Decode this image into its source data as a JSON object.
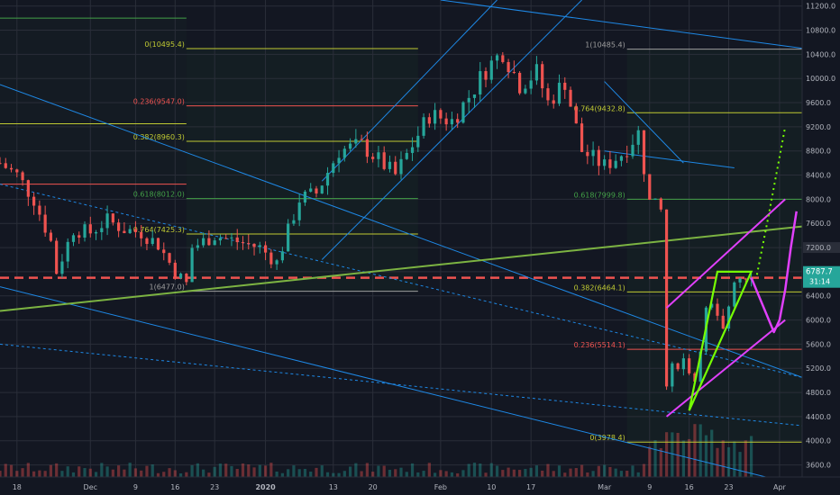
{
  "chart_data": {
    "type": "candlestick",
    "instrument": "BTCUSD",
    "timeframe": "daily",
    "y_axis": {
      "position": "right",
      "range": [
        3400,
        11300
      ],
      "ticks": [
        3600,
        4000,
        4400,
        4800,
        5200,
        5600,
        6000,
        6400,
        6800,
        7200,
        7600,
        8000,
        8400,
        8800,
        9200,
        9600,
        10000,
        10400,
        10800,
        11200
      ],
      "tick_labels": [
        "3600.0",
        "4000.0",
        "4400.0",
        "4800.0",
        "5200.0",
        "5600.0",
        "6000.0",
        "6400.0",
        "6800.0",
        "7200.0",
        "7600.0",
        "8000.0",
        "8400.0",
        "8800.0",
        "9200.0",
        "9600.0",
        "10000.0",
        "10400.0",
        "10800.0",
        "11200.0"
      ]
    },
    "x_axis": {
      "range": [
        "2019-11-15",
        "2020-04-05"
      ],
      "tick_dates": [
        "2019-11-18",
        "2019-12-01",
        "2019-12-09",
        "2019-12-16",
        "2019-12-23",
        "2020-01-01",
        "2020-01-13",
        "2020-01-20",
        "2020-02-01",
        "2020-02-10",
        "2020-02-17",
        "2020-03-01",
        "2020-03-09",
        "2020-03-16",
        "2020-03-23",
        "2020-04-01"
      ],
      "tick_labels": [
        "18",
        "Dec",
        "9",
        "16",
        "23",
        "2020",
        "13",
        "20",
        "Feb",
        "10",
        "17",
        "Mar",
        "9",
        "16",
        "23",
        "Apr"
      ]
    },
    "price_labels": {
      "current": {
        "value": 6787.7,
        "label": "6787.7",
        "countdown": "31:14",
        "color": "#26a69a"
      },
      "marker": {
        "value": 7200,
        "label": "7200.0",
        "color": "#2a2e39"
      }
    },
    "closes": [
      {
        "date": "2019-11-15",
        "close": 8600
      },
      {
        "date": "2019-11-18",
        "close": 8400
      },
      {
        "date": "2019-11-21",
        "close": 8000
      },
      {
        "date": "2019-11-24",
        "close": 7300
      },
      {
        "date": "2019-11-25",
        "close": 6800
      },
      {
        "date": "2019-11-28",
        "close": 7500
      },
      {
        "date": "2019-12-01",
        "close": 7450
      },
      {
        "date": "2019-12-04",
        "close": 7650
      },
      {
        "date": "2019-12-07",
        "close": 7500
      },
      {
        "date": "2019-12-10",
        "close": 7450
      },
      {
        "date": "2019-12-13",
        "close": 7250
      },
      {
        "date": "2019-12-16",
        "close": 6800
      },
      {
        "date": "2019-12-18",
        "close": 6600
      },
      {
        "date": "2019-12-19",
        "close": 7200
      },
      {
        "date": "2019-12-23",
        "close": 7400
      },
      {
        "date": "2019-12-27",
        "close": 7300
      },
      {
        "date": "2019-12-31",
        "close": 7200
      },
      {
        "date": "2020-01-03",
        "close": 6950
      },
      {
        "date": "2020-01-07",
        "close": 8000
      },
      {
        "date": "2020-01-10",
        "close": 8100
      },
      {
        "date": "2020-01-14",
        "close": 8800
      },
      {
        "date": "2020-01-18",
        "close": 8900
      },
      {
        "date": "2020-01-21",
        "close": 8650
      },
      {
        "date": "2020-01-24",
        "close": 8400
      },
      {
        "date": "2020-01-27",
        "close": 8900
      },
      {
        "date": "2020-01-30",
        "close": 9400
      },
      {
        "date": "2020-02-03",
        "close": 9300
      },
      {
        "date": "2020-02-06",
        "close": 9700
      },
      {
        "date": "2020-02-09",
        "close": 10150
      },
      {
        "date": "2020-02-12",
        "close": 10450
      },
      {
        "date": "2020-02-15",
        "close": 9900
      },
      {
        "date": "2020-02-18",
        "close": 10100
      },
      {
        "date": "2020-02-20",
        "close": 9600
      },
      {
        "date": "2020-02-23",
        "close": 9950
      },
      {
        "date": "2020-02-26",
        "close": 8800
      },
      {
        "date": "2020-03-01",
        "close": 8550
      },
      {
        "date": "2020-03-04",
        "close": 8750
      },
      {
        "date": "2020-03-07",
        "close": 9100
      },
      {
        "date": "2020-03-09",
        "close": 7950
      },
      {
        "date": "2020-03-11",
        "close": 7800
      },
      {
        "date": "2020-03-12",
        "close": 4900
      },
      {
        "date": "2020-03-13",
        "close": 5200
      },
      {
        "date": "2020-03-15",
        "close": 5350
      },
      {
        "date": "2020-03-17",
        "close": 5000
      },
      {
        "date": "2020-03-19",
        "close": 6150
      },
      {
        "date": "2020-03-20",
        "close": 6200
      },
      {
        "date": "2020-03-22",
        "close": 5800
      },
      {
        "date": "2020-03-24",
        "close": 6700
      },
      {
        "date": "2020-03-26",
        "close": 6750
      },
      {
        "date": "2020-03-27",
        "close": 6787.7
      }
    ],
    "fib_levels": [
      {
        "label": "0(10495.4)",
        "price": 10495.4,
        "from": "2019-12-18",
        "to": "2020-01-28",
        "color": "#c0ca33"
      },
      {
        "label": "0.236(9547.0)",
        "price": 9547.0,
        "from": "2019-12-18",
        "to": "2020-01-28",
        "color": "#ef5350"
      },
      {
        "label": "0.382(8960.3)",
        "price": 8960.3,
        "from": "2019-12-18",
        "to": "2020-01-28",
        "color": "#c0ca33"
      },
      {
        "label": "0.618(8012.0)",
        "price": 8012.0,
        "from": "2019-12-18",
        "to": "2020-01-28",
        "color": "#43a047"
      },
      {
        "label": "0.764(7425.3)",
        "price": 7425.3,
        "from": "2019-12-18",
        "to": "2020-01-28",
        "color": "#c0ca33"
      },
      {
        "label": "1(6477.0)",
        "price": 6477.0,
        "from": "2019-12-18",
        "to": "2020-01-28",
        "color": "#9e9e9e"
      },
      {
        "label": "1(10485.4)",
        "price": 10485.4,
        "from": "2020-03-05",
        "to": "2020-04-05",
        "color": "#9e9e9e"
      },
      {
        "label": "0.764(9432.8)",
        "price": 9432.8,
        "from": "2020-03-05",
        "to": "2020-04-05",
        "color": "#c0ca33"
      },
      {
        "label": "0.618(7999.8)",
        "price": 7999.8,
        "from": "2020-03-05",
        "to": "2020-04-05",
        "color": "#43a047"
      },
      {
        "label": "0.382(6464.1)",
        "price": 6464.1,
        "from": "2020-03-05",
        "to": "2020-04-05",
        "color": "#c0ca33"
      },
      {
        "label": "0.236(5514.1)",
        "price": 5514.1,
        "from": "2020-03-05",
        "to": "2020-04-05",
        "color": "#ef5350"
      },
      {
        "label": "0(3978.4)",
        "price": 3978.4,
        "from": "2020-03-05",
        "to": "2020-04-05",
        "color": "#c0ca33"
      }
    ],
    "extra_levels": [
      {
        "price": 11000,
        "from": "2019-11-15",
        "to": "2019-12-18",
        "color": "#43a047"
      },
      {
        "price": 9250,
        "from": "2019-11-15",
        "to": "2019-12-18",
        "color": "#c0ca33"
      },
      {
        "price": 8250,
        "from": "2019-11-15",
        "to": "2019-12-18",
        "color": "#ef5350"
      }
    ],
    "support_dashed": {
      "price": 6700,
      "from": "2019-11-15",
      "to": "2020-04-05",
      "color": "#ef5350"
    },
    "trendlines": [
      {
        "p1": [
          "2019-11-15",
          9900
        ],
        "p2": [
          "2020-04-05",
          5050
        ],
        "color": "#1e88e5",
        "style": "solid"
      },
      {
        "p1": [
          "2019-11-15",
          6550
        ],
        "p2": [
          "2020-04-05",
          3250
        ],
        "color": "#1e88e5",
        "style": "solid"
      },
      {
        "p1": [
          "2019-11-15",
          8250
        ],
        "p2": [
          "2020-04-05",
          5050
        ],
        "color": "#1e88e5",
        "style": "dashed"
      },
      {
        "p1": [
          "2019-11-15",
          5600
        ],
        "p2": [
          "2020-04-05",
          4250
        ],
        "color": "#1e88e5",
        "style": "dashed"
      },
      {
        "p1": [
          "2019-11-15",
          6150
        ],
        "p2": [
          "2020-04-05",
          7550
        ],
        "color": "#7cb342",
        "style": "solid",
        "width": 2
      },
      {
        "p1": [
          "2020-01-11",
          7000
        ],
        "p2": [
          "2020-02-26",
          11300
        ],
        "color": "#1e88e5",
        "style": "solid"
      },
      {
        "p1": [
          "2020-01-11",
          8300
        ],
        "p2": [
          "2020-02-11",
          11300
        ],
        "color": "#1e88e5",
        "style": "solid"
      },
      {
        "p1": [
          "2020-02-01",
          11300
        ],
        "p2": [
          "2020-04-05",
          10500
        ],
        "color": "#1e88e5",
        "style": "solid"
      },
      {
        "p1": [
          "2020-03-01",
          8800
        ],
        "p2": [
          "2020-03-24",
          8520
        ],
        "color": "#1e88e5",
        "style": "solid"
      },
      {
        "p1": [
          "2020-03-01",
          9950
        ],
        "p2": [
          "2020-03-15",
          8600
        ],
        "color": "#1e88e5",
        "style": "solid"
      }
    ],
    "annotations": {
      "rising_wedge_upper": {
        "p1": [
          "2020-03-12",
          6200
        ],
        "p2": [
          "2020-04-02",
          8000
        ],
        "color": "#e040fb"
      },
      "rising_wedge_lower": {
        "p1": [
          "2020-03-12",
          4400
        ],
        "p2": [
          "2020-04-02",
          6000
        ],
        "color": "#e040fb"
      },
      "green_triangle": [
        [
          "2020-03-16",
          4500
        ],
        [
          "2020-03-21",
          6800
        ],
        [
          "2020-03-27",
          6800
        ],
        [
          "2020-03-16",
          4500
        ]
      ],
      "projection_dotted": [
        [
          "2020-03-28",
          6750
        ],
        [
          "2020-03-30",
          7700
        ],
        [
          "2020-04-01",
          8700
        ],
        [
          "2020-04-02",
          9200
        ]
      ],
      "projection_curve": [
        [
          "2020-03-27",
          6700
        ],
        [
          "2020-03-29",
          6250
        ],
        [
          "2020-03-31",
          5800
        ],
        [
          "2020-04-01",
          6000
        ],
        [
          "2020-04-02",
          6500
        ],
        [
          "2020-04-03",
          7200
        ],
        [
          "2020-04-04",
          7800
        ]
      ]
    },
    "grid": true,
    "legend": "none"
  }
}
